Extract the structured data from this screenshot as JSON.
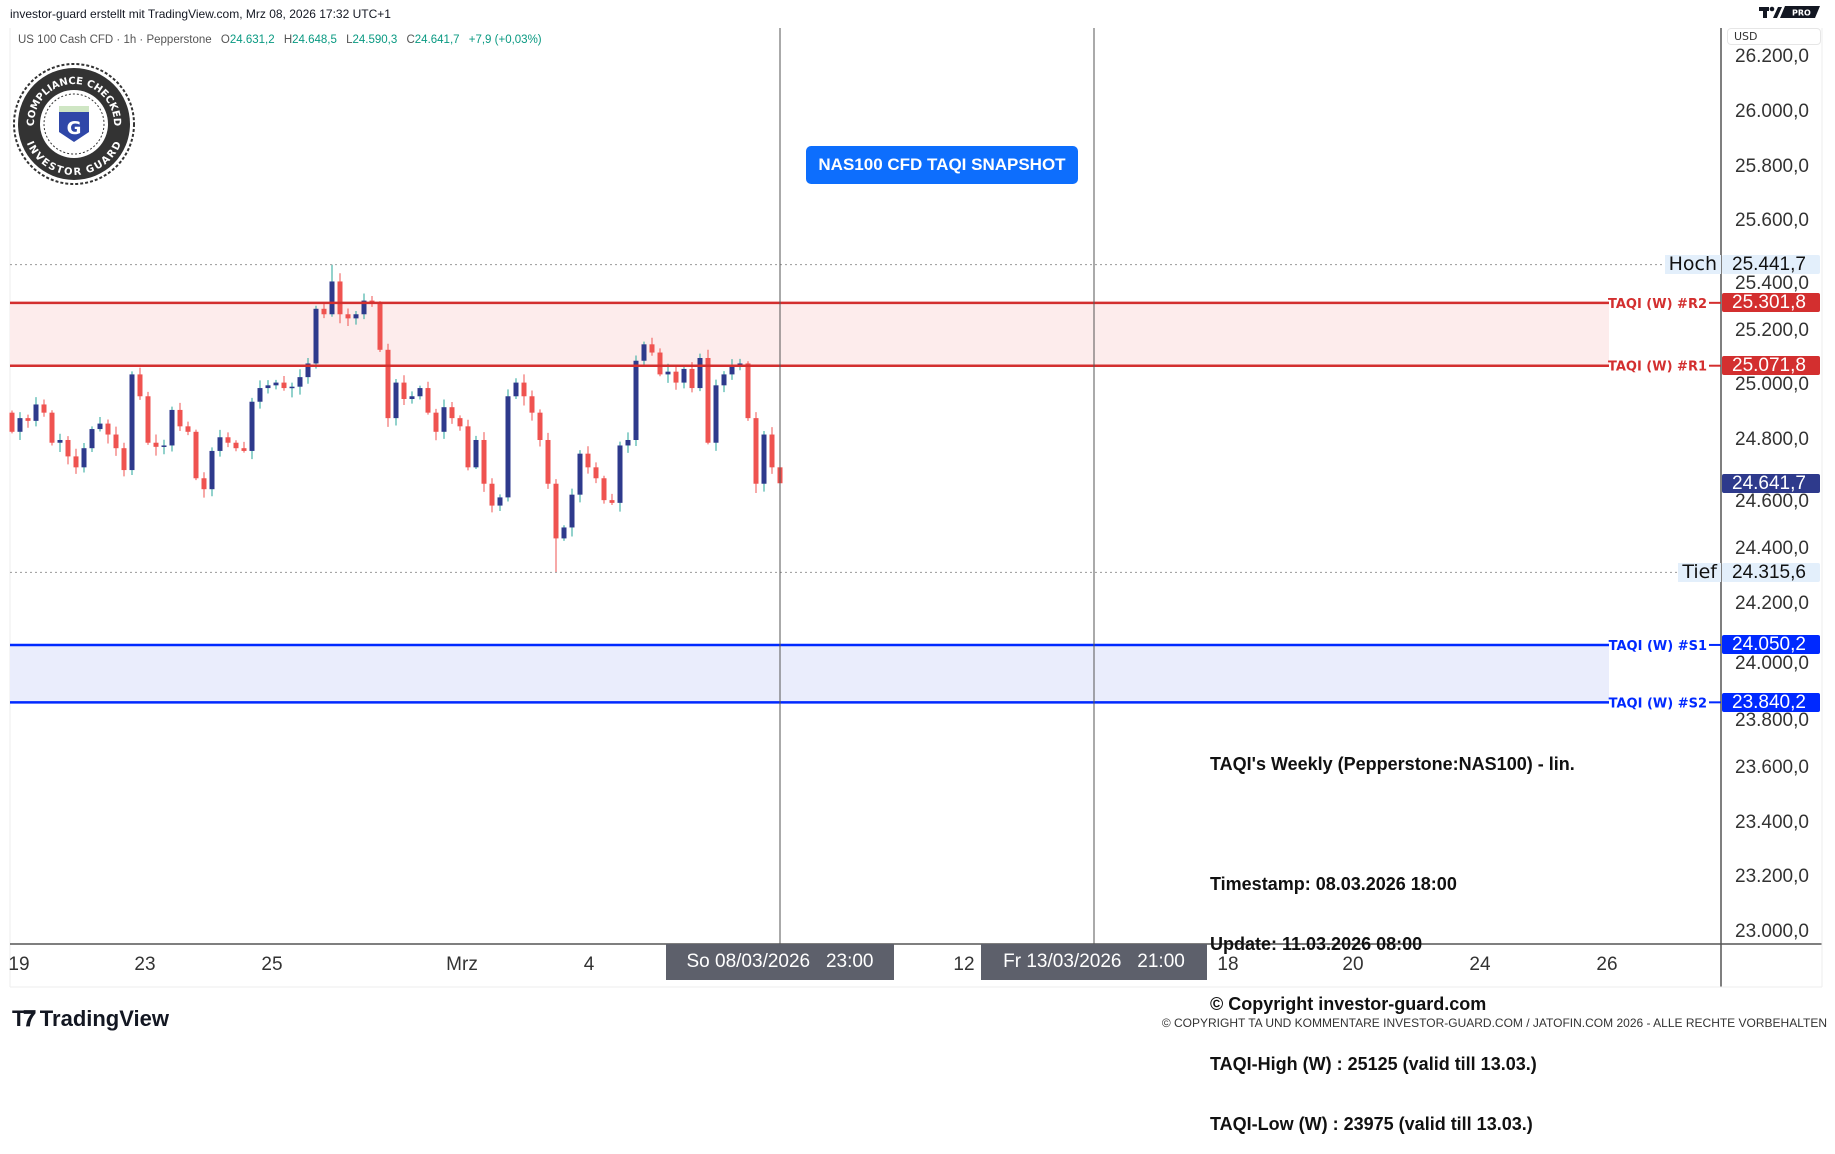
{
  "header": {
    "attribution": "investor-guard erstellt mit TradingView.com, Mrz 08, 2026 17:32 UTC+1",
    "badge_text": "PRO"
  },
  "legend": {
    "symbol": "US 100 Cash CFD · 1h · Pepperstone",
    "open_label": "O",
    "open": "24.631,2",
    "high_label": "H",
    "high": "24.648,5",
    "low_label": "L",
    "low": "24.590,3",
    "close_label": "C",
    "close": "24.641,7",
    "change": "+7,9 (+0,03%)"
  },
  "logo_seal": {
    "top_text": "COMPLIANCE CHECKED",
    "bottom_text": "INVESTOR GUARD",
    "letter": "G"
  },
  "snapshot_label": "NAS100 CFD TAQI SNAPSHOT",
  "info_box": [
    "TAQI's Weekly (Pepperstone:NAS100) - lin.",
    "",
    "Timestamp: 08.03.2026 18:00",
    "Update: 11.03.2026 08:00",
    "© Copyright investor-guard.com",
    "TAQI-High (W) : 25125 (valid till 13.03.)",
    "TAQI-Low (W) : 23975 (valid till 13.03.)"
  ],
  "price_axis": {
    "currency": "USD",
    "ticks": [
      "26.200,0",
      "26.000,0",
      "25.800,0",
      "25.600,0",
      "25.400,0",
      "25.200,0",
      "25.000,0",
      "24.800,0",
      "24.600,0",
      "24.400,0",
      "24.200,0",
      "24.000,0",
      "23.800,0",
      "23.600,0",
      "23.400,0",
      "23.200,0",
      "23.000,0"
    ]
  },
  "time_axis": {
    "ticks": [
      "19",
      "23",
      "25",
      "Mrz",
      "4",
      "12",
      "18",
      "20",
      "24",
      "26"
    ],
    "crosshair_1": "So 08/03/2026   23:00",
    "crosshair_2": "Fr 13/03/2026   21:00"
  },
  "levels": {
    "high": {
      "label": "Hoch",
      "value": 25441.7,
      "text": "25.441,7"
    },
    "low": {
      "label": "Tief",
      "value": 24315.6,
      "text": "24.315,6"
    },
    "r2": {
      "label": "TAQI (W) #R2",
      "value": 25301.8,
      "text": "25.301,8",
      "color": "#d32f2f"
    },
    "r1": {
      "label": "TAQI (W) #R1",
      "value": 25071.8,
      "text": "25.071,8",
      "color": "#d32f2f"
    },
    "s1": {
      "label": "TAQI (W) #S1",
      "value": 24050.2,
      "text": "24.050,2",
      "color": "#0029ff"
    },
    "s2": {
      "label": "TAQI (W) #S2",
      "value": 23840.2,
      "text": "23.840,2",
      "color": "#0029ff"
    },
    "last": {
      "value": 24641.7,
      "text": "24.641,7",
      "color": "#2e3a8c"
    }
  },
  "footer": {
    "brand": "TradingView",
    "copyright": "© COPYRIGHT TA UND KOMMENTARE INVESTOR-GUARD.COM / JATOFIN.COM 2026 - ALLE RECHTE VORBEHALTEN"
  },
  "chart_data": {
    "type": "candlestick",
    "interval": "1h",
    "ylim": [
      23000,
      26200
    ],
    "grid": false,
    "up_color": "#2e3a8c",
    "down_color": "#ef5350",
    "first_open": 24900,
    "closes": [
      24830,
      24880,
      24870,
      24930,
      24900,
      24790,
      24800,
      24740,
      24700,
      24770,
      24840,
      24860,
      24820,
      24770,
      24690,
      25040,
      24960,
      24790,
      24775,
      24780,
      24910,
      24850,
      24830,
      24660,
      24620,
      24760,
      24810,
      24790,
      24770,
      24760,
      24940,
      24990,
      25000,
      25010,
      24990,
      24995,
      25030,
      25080,
      25280,
      25260,
      25380,
      25260,
      25245,
      25260,
      25310,
      25300,
      25130,
      24880,
      25010,
      24950,
      24960,
      24990,
      24900,
      24830,
      24920,
      24880,
      24850,
      24700,
      24800,
      24640,
      24560,
      24590,
      24960,
      25010,
      24960,
      24900,
      24800,
      24640,
      24440,
      24480,
      24600,
      24750,
      24700,
      24660,
      24580,
      24570,
      24780,
      24800,
      25090,
      25150,
      25120,
      25040,
      25050,
      25010,
      25060,
      24990,
      25100,
      24790,
      25000,
      25040,
      25070,
      25080,
      24880,
      24640,
      24820,
      24700,
      24641.7
    ],
    "period_high": 25441.7,
    "period_low": 24315.6
  }
}
